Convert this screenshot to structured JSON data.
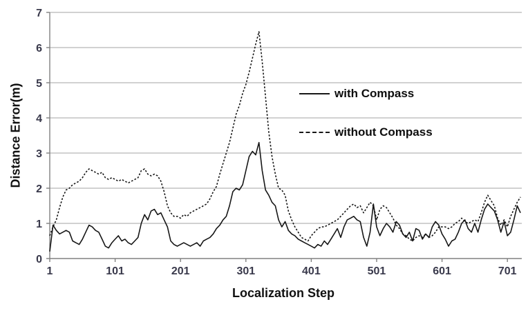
{
  "chart_data": {
    "type": "line",
    "title": "",
    "xlabel": "Localization Step",
    "ylabel": "Distance Error(m)",
    "xlim": [
      1,
      723
    ],
    "ylim": [
      0,
      7
    ],
    "x_ticks": [
      1,
      101,
      201,
      301,
      401,
      501,
      601,
      701
    ],
    "y_ticks": [
      0,
      1,
      2,
      3,
      4,
      5,
      6,
      7
    ],
    "grid": "horizontal",
    "legend_position": "inside-center-right",
    "x_start": 1,
    "x_interval": 5,
    "series": [
      {
        "name": "with Compass",
        "style": "solid",
        "color": "#161616",
        "values": [
          0.2,
          0.95,
          0.8,
          0.7,
          0.75,
          0.8,
          0.75,
          0.5,
          0.45,
          0.4,
          0.55,
          0.75,
          0.95,
          0.9,
          0.8,
          0.75,
          0.55,
          0.35,
          0.3,
          0.45,
          0.55,
          0.65,
          0.5,
          0.55,
          0.45,
          0.4,
          0.5,
          0.6,
          1.0,
          1.25,
          1.1,
          1.35,
          1.4,
          1.25,
          1.3,
          1.1,
          0.9,
          0.5,
          0.4,
          0.35,
          0.4,
          0.45,
          0.4,
          0.35,
          0.4,
          0.45,
          0.35,
          0.5,
          0.55,
          0.6,
          0.7,
          0.85,
          0.95,
          1.1,
          1.2,
          1.5,
          1.9,
          2.0,
          1.95,
          2.1,
          2.5,
          2.9,
          3.05,
          2.95,
          3.3,
          2.5,
          1.95,
          1.8,
          1.6,
          1.5,
          1.1,
          0.9,
          1.05,
          0.8,
          0.7,
          0.65,
          0.55,
          0.5,
          0.45,
          0.4,
          0.35,
          0.3,
          0.4,
          0.35,
          0.5,
          0.4,
          0.55,
          0.7,
          0.85,
          0.6,
          0.9,
          1.1,
          1.15,
          1.2,
          1.1,
          1.05,
          0.6,
          0.35,
          0.75,
          1.55,
          0.9,
          0.65,
          0.85,
          1.0,
          0.9,
          0.75,
          1.05,
          0.95,
          0.7,
          0.6,
          0.75,
          0.5,
          0.85,
          0.8,
          0.55,
          0.7,
          0.6,
          0.9,
          1.05,
          0.95,
          0.7,
          0.55,
          0.35,
          0.5,
          0.55,
          0.75,
          1.0,
          1.1,
          0.85,
          0.75,
          1.0,
          0.75,
          1.1,
          1.4,
          1.55,
          1.45,
          1.35,
          1.1,
          0.75,
          1.05,
          0.65,
          0.75,
          1.1,
          1.5,
          1.3
        ]
      },
      {
        "name": "without Compass",
        "style": "dashed",
        "color": "#161616",
        "values": [
          0.65,
          0.9,
          1.1,
          1.45,
          1.75,
          1.95,
          2.0,
          2.1,
          2.15,
          2.2,
          2.3,
          2.45,
          2.55,
          2.5,
          2.45,
          2.4,
          2.45,
          2.3,
          2.25,
          2.3,
          2.25,
          2.2,
          2.25,
          2.2,
          2.15,
          2.2,
          2.25,
          2.3,
          2.5,
          2.55,
          2.4,
          2.35,
          2.4,
          2.35,
          2.2,
          1.9,
          1.5,
          1.3,
          1.2,
          1.2,
          1.15,
          1.25,
          1.2,
          1.3,
          1.35,
          1.4,
          1.45,
          1.5,
          1.55,
          1.7,
          1.9,
          2.05,
          2.4,
          2.7,
          3.0,
          3.3,
          3.7,
          4.1,
          4.35,
          4.7,
          4.95,
          5.3,
          5.7,
          6.1,
          6.45,
          5.6,
          4.6,
          3.6,
          2.9,
          2.4,
          2.0,
          1.95,
          1.8,
          1.35,
          1.1,
          0.9,
          0.75,
          0.6,
          0.55,
          0.5,
          0.65,
          0.75,
          0.85,
          0.9,
          0.9,
          0.95,
          1.0,
          1.05,
          1.1,
          1.2,
          1.3,
          1.4,
          1.5,
          1.55,
          1.45,
          1.5,
          1.3,
          1.45,
          1.6,
          1.5,
          1.1,
          1.4,
          1.5,
          1.45,
          1.3,
          1.15,
          0.95,
          0.85,
          0.7,
          0.65,
          0.55,
          0.5,
          0.6,
          0.65,
          0.6,
          0.7,
          0.6,
          0.65,
          0.75,
          0.9,
          0.9,
          0.9,
          0.85,
          0.9,
          1.0,
          1.05,
          1.15,
          1.05,
          1.0,
          1.05,
          1.1,
          1.05,
          1.3,
          1.6,
          1.8,
          1.65,
          1.5,
          1.15,
          0.95,
          1.1,
          0.9,
          1.2,
          1.4,
          1.6,
          1.75
        ]
      }
    ]
  },
  "colors": {
    "background": "#ffffff",
    "gridline": "#a3a3a3",
    "axis": "#808080",
    "tick_text": "#39394b",
    "label_text": "#111111",
    "line": "#161616"
  }
}
